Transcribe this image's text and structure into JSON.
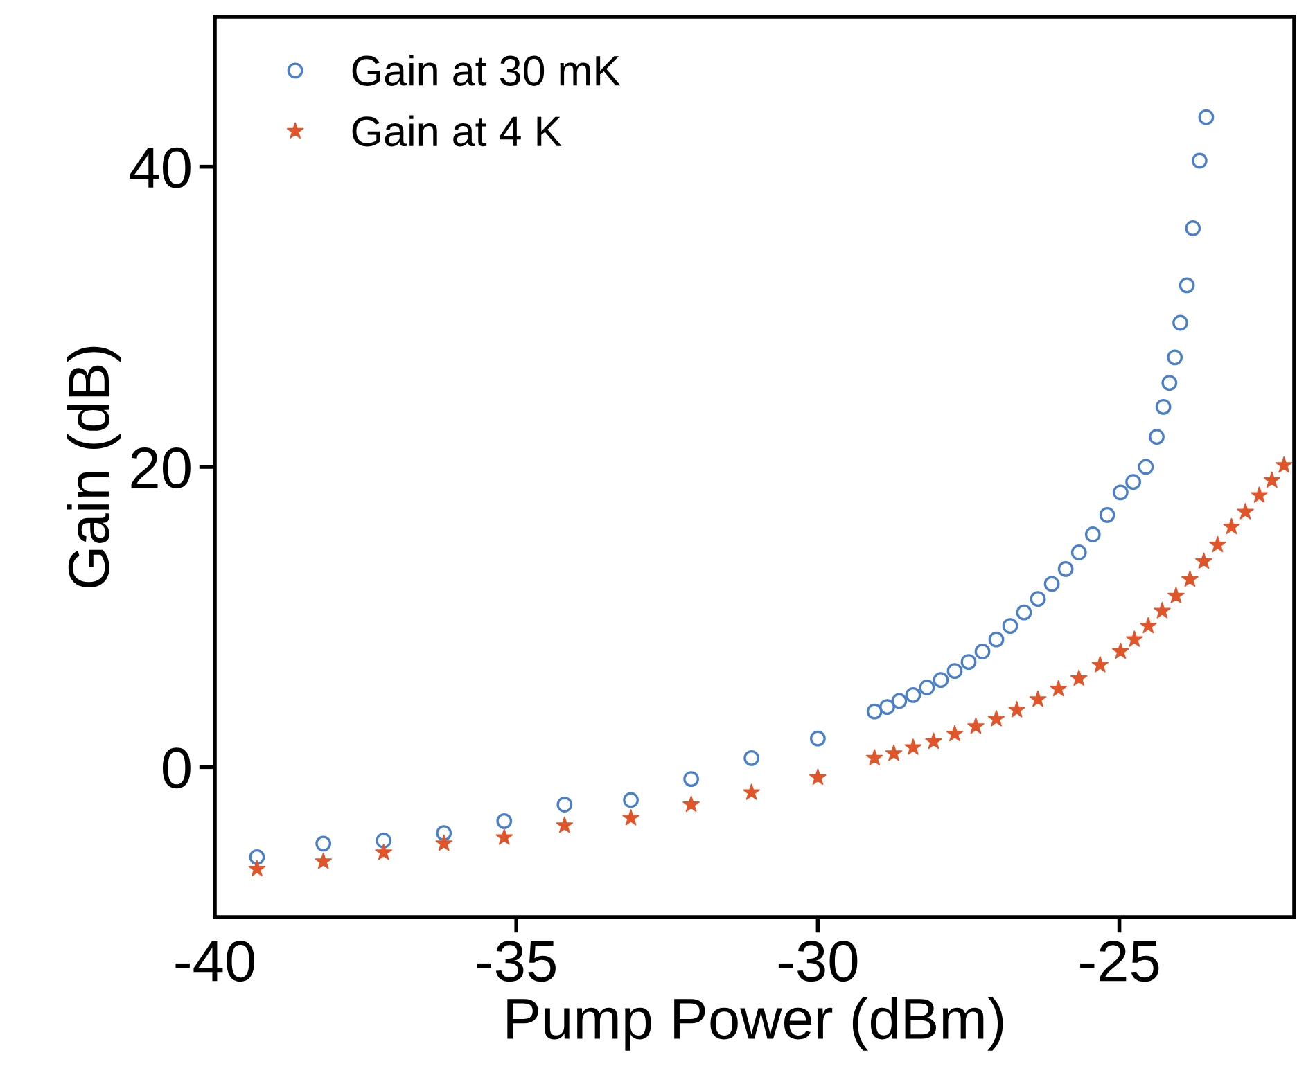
{
  "chart_data": {
    "type": "scatter",
    "xlabel": "Pump Power (dBm)",
    "ylabel": "Gain (dB)",
    "xlim": [
      -40,
      -22.1
    ],
    "ylim": [
      -10,
      50
    ],
    "xticks": [
      -40,
      -35,
      -30,
      -25
    ],
    "yticks": [
      0,
      20,
      40
    ],
    "grid": false,
    "legend": "top left",
    "marker": "circle",
    "series": [
      {
        "name": "Gain at 30 mK",
        "color": "#4a7fc9",
        "x": [
          -39.3,
          -38.2,
          -37.2,
          -36.2,
          -35.2,
          -34.2,
          -33.1,
          -32.1,
          -31.1,
          -30.0,
          -29.06,
          -28.85,
          -28.65,
          -28.42,
          -28.19,
          -27.96,
          -27.73,
          -27.5,
          -27.27,
          -27.04,
          -26.81,
          -26.58,
          -26.35,
          -26.12,
          -25.89,
          -25.67,
          -25.44,
          -25.2,
          -24.98,
          -24.77,
          -24.56,
          -24.38,
          -24.27,
          -24.17,
          -24.08,
          -23.99,
          -23.88,
          -23.78,
          -23.67,
          -23.56
        ],
        "values": [
          -6.0,
          -5.1,
          -4.9,
          -4.4,
          -3.6,
          -2.5,
          -2.2,
          -0.8,
          0.6,
          1.9,
          3.7,
          4.0,
          4.4,
          4.8,
          5.3,
          5.8,
          6.4,
          7.0,
          7.7,
          8.5,
          9.4,
          10.3,
          11.2,
          12.2,
          13.2,
          14.3,
          15.5,
          16.8,
          18.3,
          19.0,
          20.0,
          22.0,
          24.0,
          25.6,
          27.3,
          29.6,
          32.1,
          35.9,
          40.4,
          43.3
        ]
      },
      {
        "name": "Gain at 4 K",
        "color": "#e0552a",
        "marker": "star",
        "x": [
          -39.3,
          -38.2,
          -37.2,
          -36.2,
          -35.2,
          -34.2,
          -33.1,
          -32.1,
          -31.1,
          -30.0,
          -29.06,
          -28.74,
          -28.42,
          -28.08,
          -27.73,
          -27.38,
          -27.04,
          -26.7,
          -26.35,
          -26.01,
          -25.67,
          -25.32,
          -24.98,
          -24.75,
          -24.52,
          -24.29,
          -24.06,
          -23.83,
          -23.6,
          -23.37,
          -23.14,
          -22.91,
          -22.68,
          -22.47,
          -22.27
        ],
        "values": [
          -6.8,
          -6.3,
          -5.7,
          -5.1,
          -4.7,
          -3.9,
          -3.4,
          -2.5,
          -1.7,
          -0.7,
          0.6,
          0.9,
          1.3,
          1.7,
          2.2,
          2.7,
          3.2,
          3.8,
          4.5,
          5.2,
          5.9,
          6.8,
          7.7,
          8.5,
          9.4,
          10.4,
          11.4,
          12.5,
          13.7,
          14.8,
          16.0,
          17.0,
          18.1,
          19.1,
          20.1
        ]
      }
    ]
  }
}
